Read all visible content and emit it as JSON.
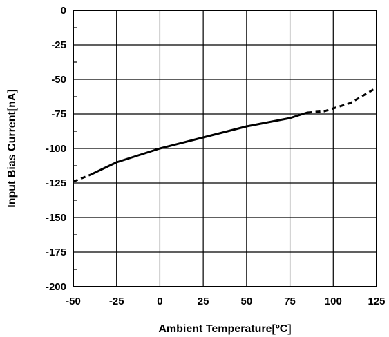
{
  "chart_data": {
    "type": "line",
    "title": "",
    "xlabel": "Ambient Temperature[ºC]",
    "ylabel": "Input Bias Current[nA]",
    "xlim": [
      -50,
      125
    ],
    "ylim": [
      -200,
      0
    ],
    "xticks": [
      -50,
      -25,
      0,
      25,
      50,
      75,
      100,
      125
    ],
    "yticks": [
      0,
      -25,
      -50,
      -75,
      -100,
      -125,
      -150,
      -175,
      -200
    ],
    "x_tick_labels": [
      "-50",
      "-25",
      "0",
      "25",
      "50",
      "75",
      "100",
      "125"
    ],
    "y_tick_labels": [
      "0",
      "-25",
      "-50",
      "-75",
      "-100",
      "-125",
      "-150",
      "-175",
      "-200"
    ],
    "grid": true,
    "minor_ticks": true,
    "series": [
      {
        "style": "solid",
        "color": "#000000",
        "x": [
          -40,
          -25,
          0,
          25,
          50,
          75,
          85
        ],
        "y": [
          -119,
          -110,
          -100,
          -92,
          -84,
          -78,
          -74
        ]
      },
      {
        "style": "dashed",
        "color": "#000000",
        "x": [
          -50,
          -40
        ],
        "y": [
          -124,
          -119
        ]
      },
      {
        "style": "dashed",
        "color": "#000000",
        "x": [
          85,
          95,
          110,
          125
        ],
        "y": [
          -74,
          -73,
          -67,
          -56
        ]
      }
    ]
  }
}
